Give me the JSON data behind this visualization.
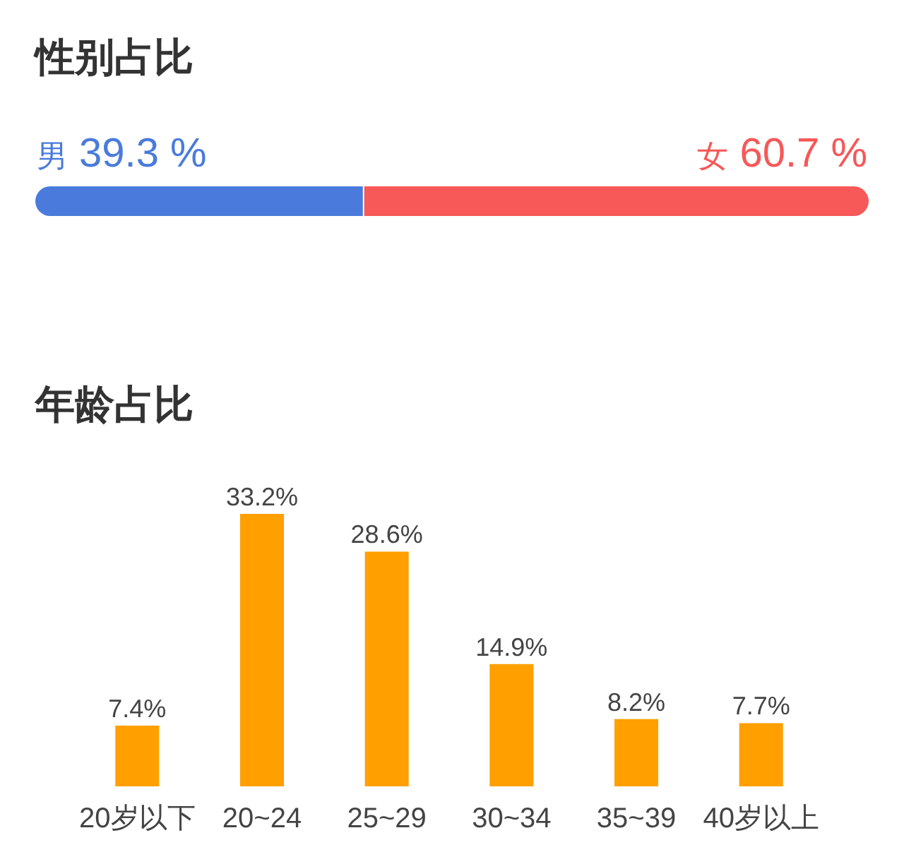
{
  "chart_data": [
    {
      "type": "bar",
      "title": "性别占比",
      "orientation": "horizontal",
      "stacked": true,
      "tick_labels": false,
      "categories": [
        null
      ],
      "series": [
        {
          "name": "男",
          "color": "#4a7bdc",
          "values": [
            39.3
          ],
          "value_labels": [
            "39.3 %"
          ]
        },
        {
          "name": "女",
          "color": "#f75858",
          "values": [
            60.7
          ],
          "value_labels": [
            "60.7 %"
          ]
        }
      ]
    },
    {
      "type": "bar",
      "title": "年龄占比",
      "tick_labels": "x",
      "categories": [
        "20岁以下",
        "20~24",
        "25~29",
        "30~34",
        "35~39",
        "40岁以上"
      ],
      "values": [
        7.4,
        33.2,
        28.6,
        14.9,
        8.2,
        7.7
      ],
      "color": "#ff9f00",
      "value_labels": [
        "7.4%",
        "33.2%",
        "28.6%",
        "14.9%",
        "8.2%",
        "7.7%"
      ]
    }
  ]
}
